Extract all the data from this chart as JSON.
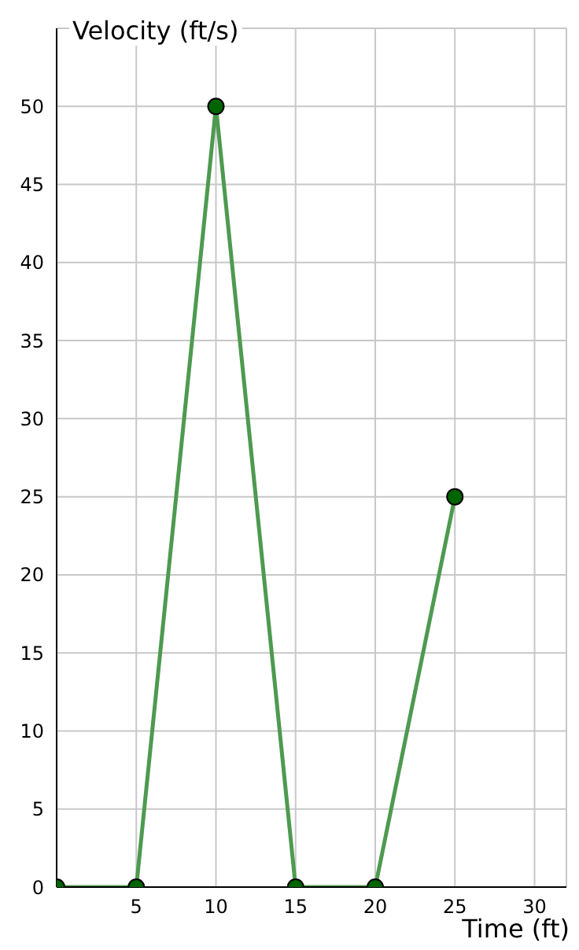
{
  "chart_data": {
    "type": "line",
    "xlabel": "Time (ft)",
    "ylabel": "Velocity (ft/s)",
    "x": [
      0,
      5,
      10,
      15,
      20,
      25
    ],
    "series": [
      {
        "color": "#4e9a50",
        "values": [
          0,
          0,
          50,
          0,
          0,
          25
        ]
      }
    ],
    "xlim": [
      0,
      32
    ],
    "xticks": [
      5,
      10,
      15,
      20,
      25,
      30
    ],
    "ylim": [
      0,
      55
    ],
    "yticks": [
      0,
      5,
      10,
      15,
      20,
      25,
      30,
      35,
      40,
      45,
      50
    ],
    "grid": true,
    "marker": "circle",
    "line_style": "solid"
  }
}
